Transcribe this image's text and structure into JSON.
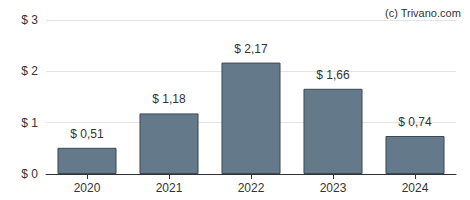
{
  "chart_data": {
    "type": "bar",
    "annotation": "(c) Trivano.com",
    "categories": [
      "2020",
      "2021",
      "2022",
      "2023",
      "2024"
    ],
    "values": [
      0.51,
      1.18,
      2.17,
      1.66,
      0.74
    ],
    "value_labels": [
      "$ 0,51",
      "$ 1,18",
      "$ 2,17",
      "$ 1,66",
      "$ 0,74"
    ],
    "data_labels": true,
    "color": "#647a8b",
    "ylim": [
      0,
      3
    ],
    "yticks": [
      {
        "value": 0,
        "label": "$ 0"
      },
      {
        "value": 1,
        "label": "$ 1"
      },
      {
        "value": 2,
        "label": "$ 2"
      },
      {
        "value": 3,
        "label": "$ 3"
      }
    ],
    "grid": true
  }
}
